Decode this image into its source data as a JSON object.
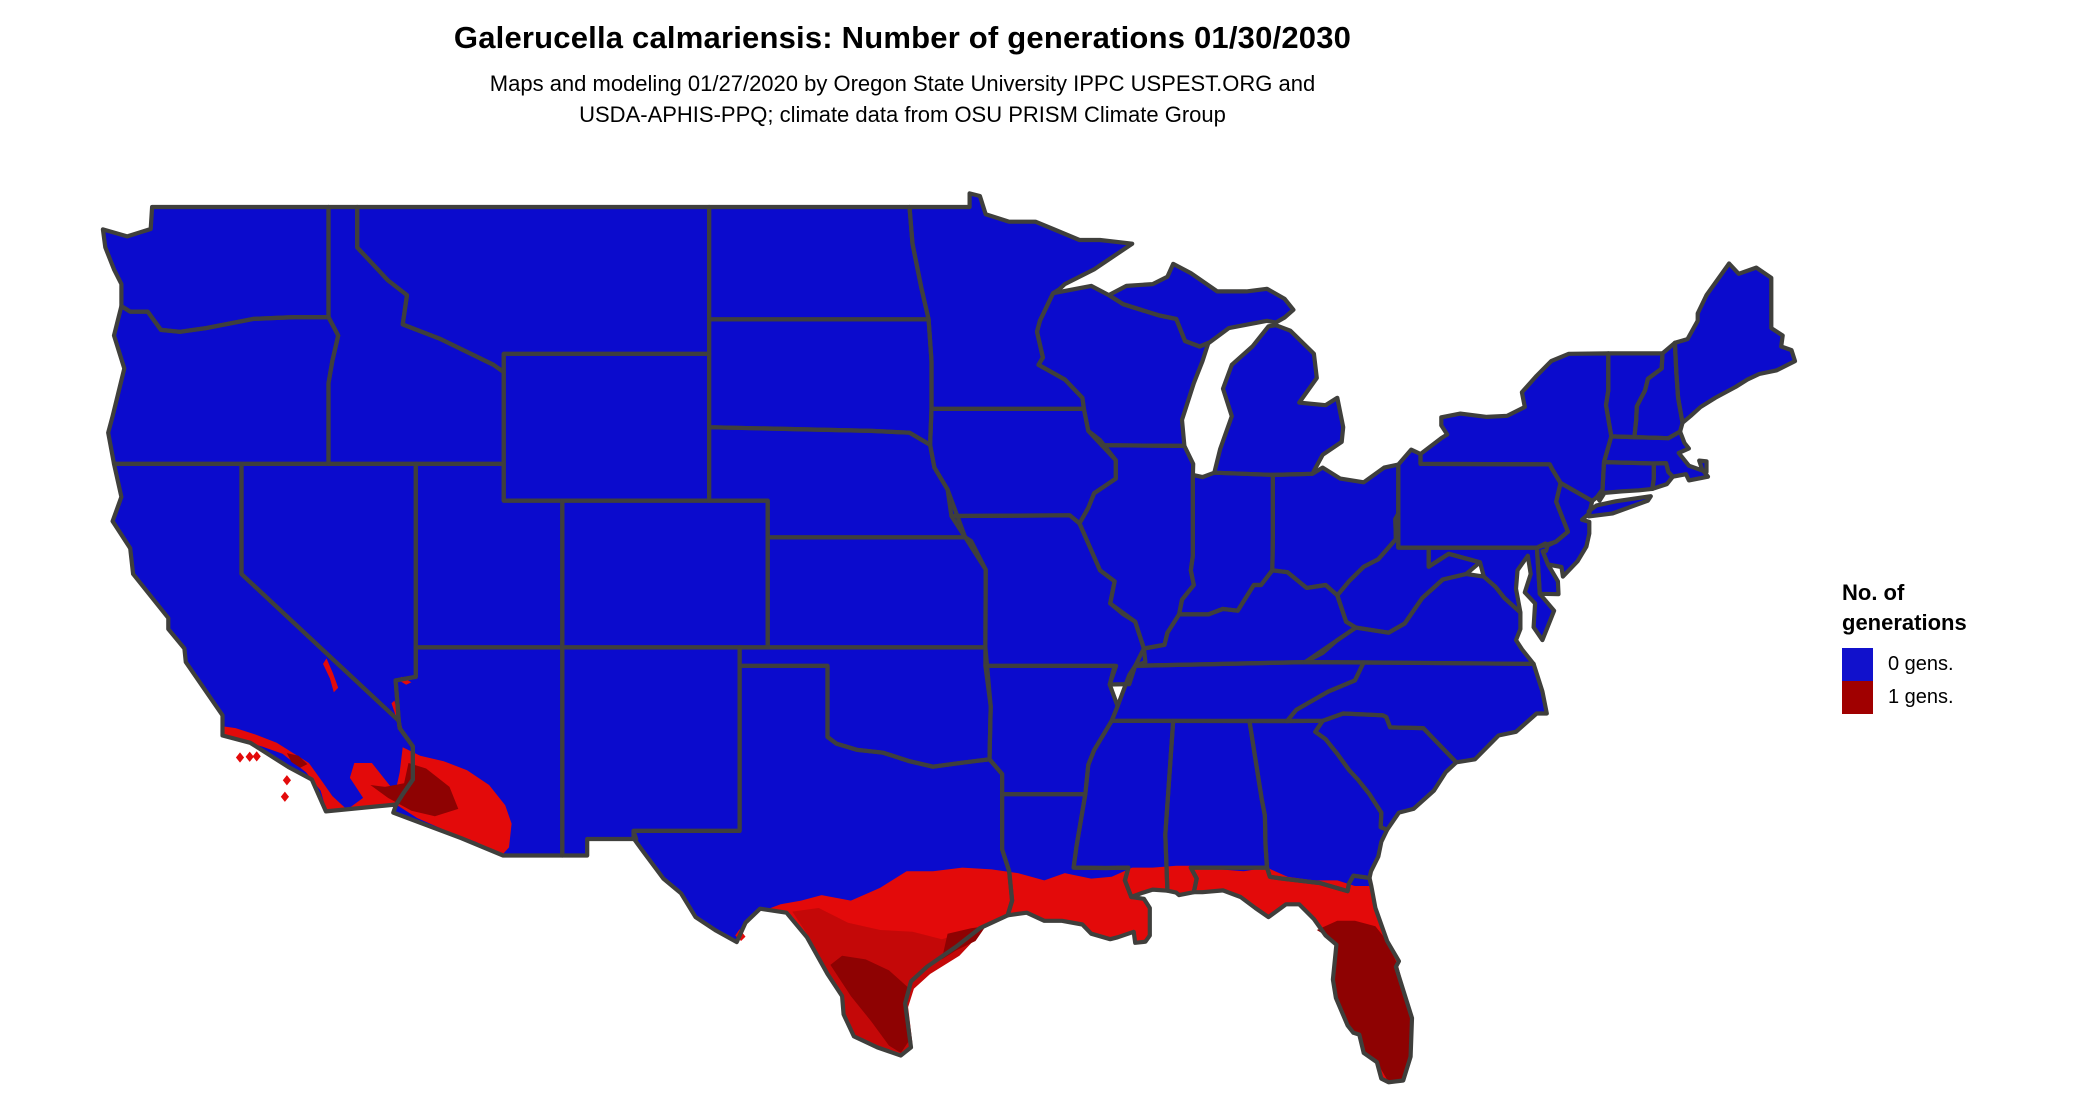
{
  "header": {
    "title": "Galerucella calmariensis: Number of generations 01/30/2030",
    "subtitle_line1": "Maps and modeling 01/27/2020 by Oregon State University IPPC USPEST.ORG and",
    "subtitle_line2": "USDA-APHIS-PPQ; climate data from OSU PRISM Climate Group"
  },
  "legend": {
    "title_line1": "No. of",
    "title_line2": "generations",
    "items": [
      {
        "label": "0 gens.",
        "color": "#1111cc"
      },
      {
        "label": "1 gens.",
        "color": "#a00000"
      }
    ]
  },
  "map": {
    "type": "choropleth-us-map",
    "colors": {
      "zero_generations_fill": "#0b0bcd",
      "one_generation_bright": "#e30a0a",
      "one_generation_mid": "#c40808",
      "one_generation_dark": "#8e0202",
      "state_border": "#3f3f3c",
      "water_background": "#ffffff"
    },
    "regions_with_one_generation": [
      "Southern California coast and Los Angeles basin",
      "Channel Islands",
      "Death Valley area",
      "Lower Colorado River / Lake Mead slivers",
      "Southwestern Arizona low desert (Yuma to Phoenix/Tucson)",
      "Southern Texas and Gulf Coast of Texas",
      "Big Bend Rio Grande speck",
      "Coastal Louisiana, Mississippi, Alabama",
      "Florida panhandle coast and entire Florida peninsula"
    ],
    "regions_with_zero_generations": "Remainder of the contiguous United States"
  }
}
